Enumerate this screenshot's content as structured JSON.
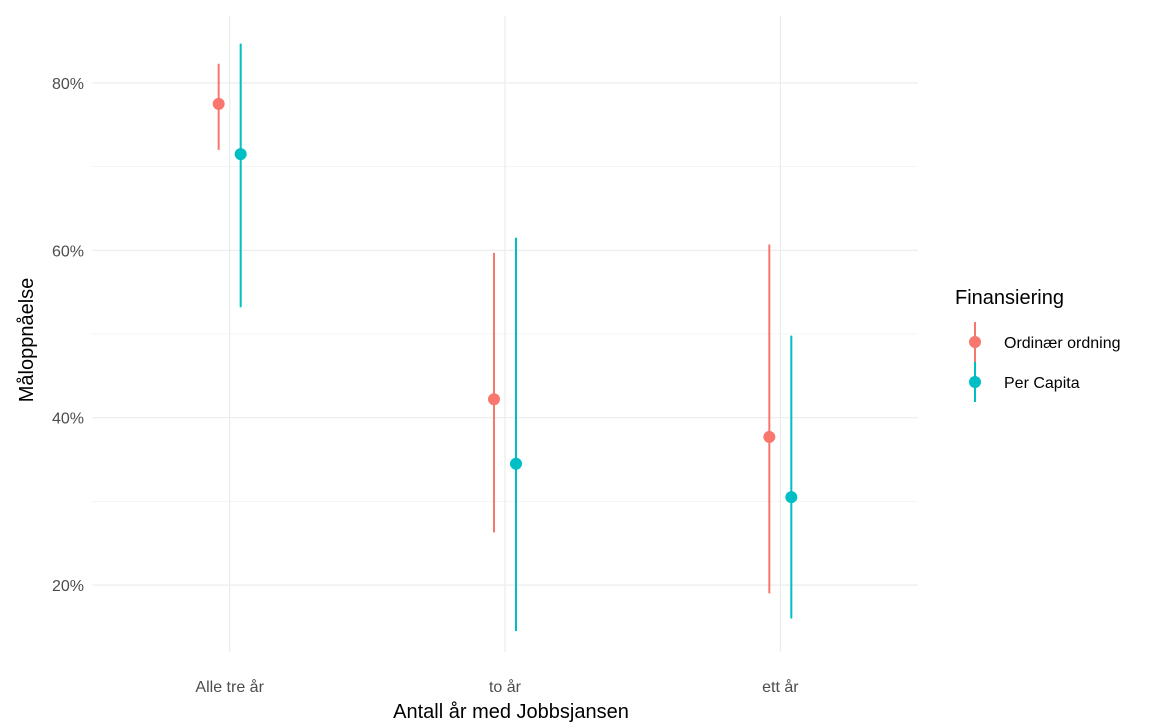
{
  "chart_data": {
    "type": "pointrange",
    "xlabel": "Antall år med Jobbsjansen",
    "ylabel": "Måloppnåelse",
    "categories": [
      "Alle tre år",
      "to år",
      "ett år"
    ],
    "ylim": [
      0.12,
      0.88
    ],
    "y_major_ticks": [
      0.2,
      0.4,
      0.6,
      0.8
    ],
    "y_minor_ticks": [
      0.3,
      0.5,
      0.7
    ],
    "y_tick_labels": [
      "20%",
      "40%",
      "60%",
      "80%"
    ],
    "grid": true,
    "legend": {
      "title": "Finansiering",
      "position": "right"
    },
    "series": [
      {
        "name": "Ordinær ordning",
        "color": "#F8766D",
        "values": [
          0.775,
          0.422,
          0.377
        ],
        "lower": [
          0.72,
          0.263,
          0.19
        ],
        "upper": [
          0.823,
          0.597,
          0.607
        ]
      },
      {
        "name": "Per Capita",
        "color": "#00BFC4",
        "values": [
          0.715,
          0.345,
          0.305
        ],
        "lower": [
          0.532,
          0.145,
          0.16
        ],
        "upper": [
          0.847,
          0.615,
          0.498
        ]
      }
    ]
  }
}
